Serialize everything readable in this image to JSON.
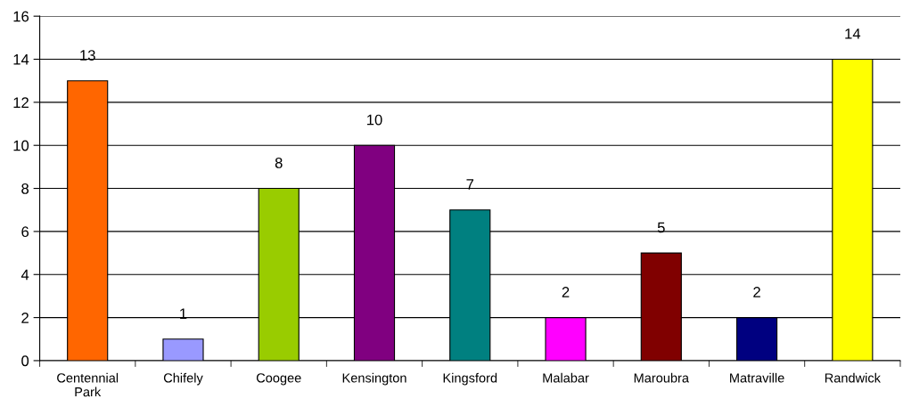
{
  "chart_data": {
    "type": "bar",
    "categories": [
      "Centennial\nPark",
      "Chifely",
      "Coogee",
      "Kensington",
      "Kingsford",
      "Malabar",
      "Maroubra",
      "Matraville",
      "Randwick"
    ],
    "values": [
      13,
      1,
      8,
      10,
      7,
      2,
      5,
      2,
      14
    ],
    "colors": [
      "#ff6600",
      "#9999ff",
      "#99cc00",
      "#800080",
      "#008080",
      "#ff00ff",
      "#800000",
      "#000080",
      "#ffff00"
    ],
    "ylim": [
      0,
      16
    ],
    "yticks": [
      0,
      2,
      4,
      6,
      8,
      10,
      12,
      14,
      16
    ],
    "grid": "y",
    "data_labels": true,
    "legend": false
  }
}
